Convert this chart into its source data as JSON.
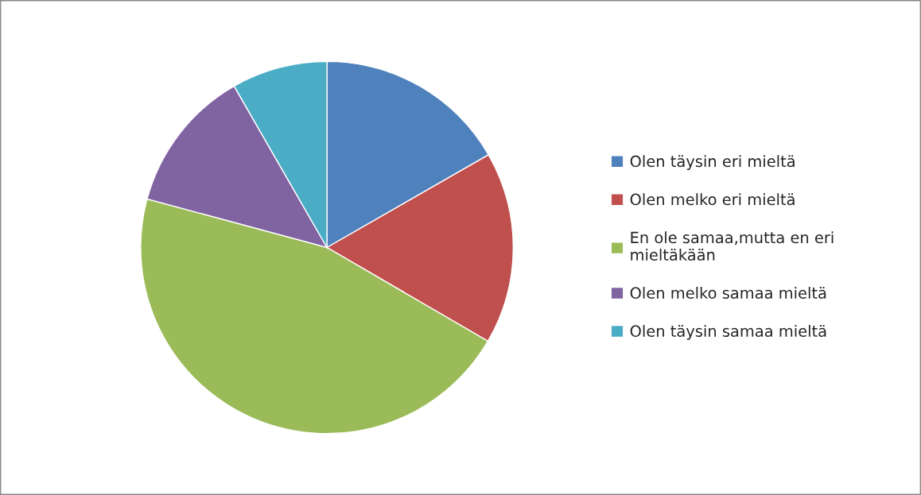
{
  "chart_data": {
    "type": "pie",
    "categories": [
      "Olen täysin eri mieltä",
      "Olen melko eri mieltä",
      "En ole samaa,mutta en eri mieltäkään",
      "Olen melko samaa mieltä",
      "Olen täysin samaa mieltä"
    ],
    "values": [
      16.7,
      16.7,
      45.8,
      12.5,
      8.3
    ],
    "colors": [
      "#4f81bd",
      "#c0504d",
      "#9bbb59",
      "#8064a2",
      "#4bacc6"
    ],
    "legend": "right"
  }
}
